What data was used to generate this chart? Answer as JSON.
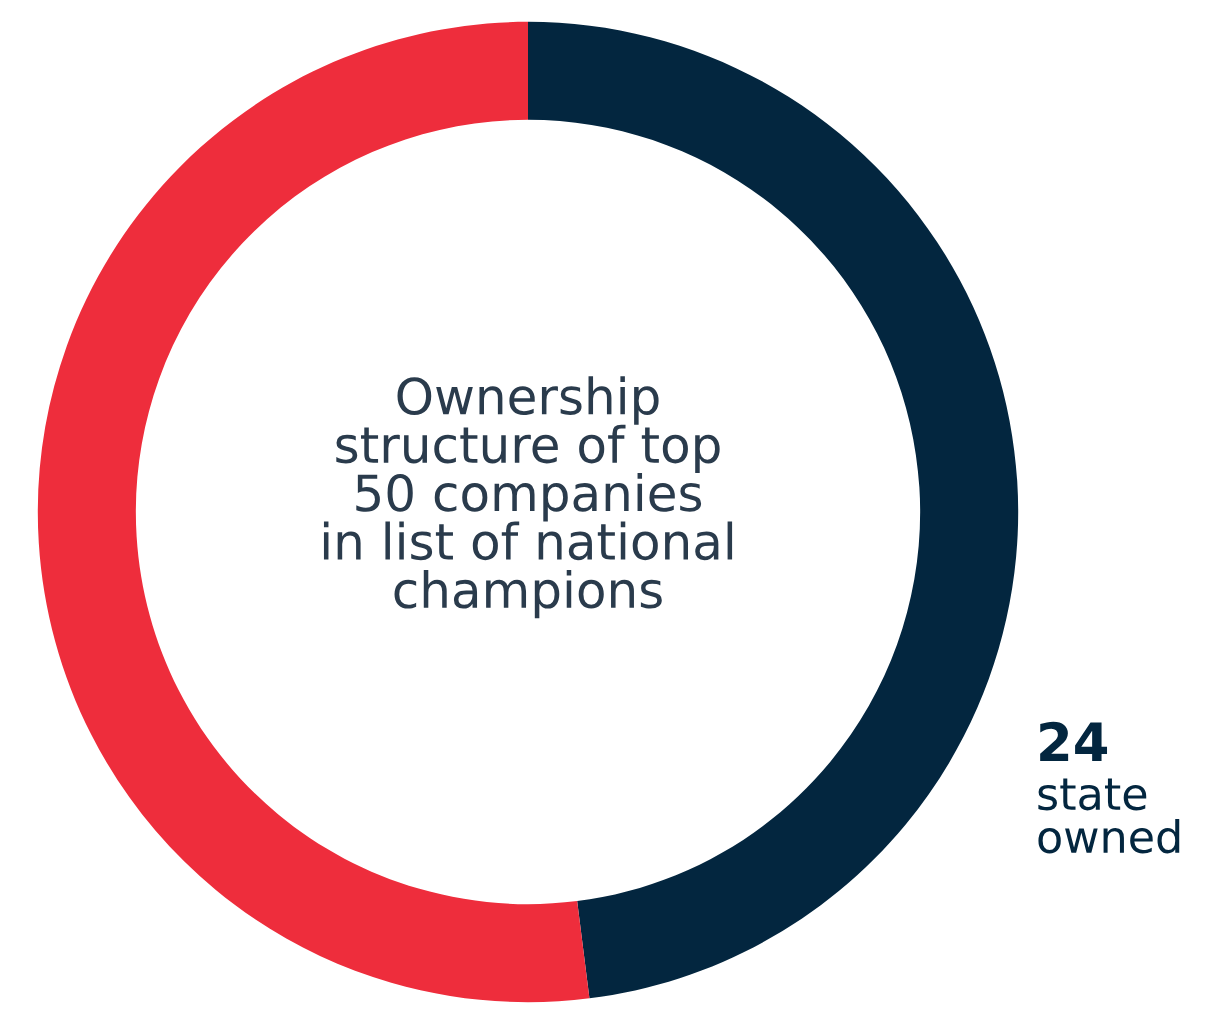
{
  "chart_data": {
    "type": "donut",
    "categories": [
      "state owned",
      null
    ],
    "values": [
      24,
      26
    ],
    "colors": [
      "#03263f",
      "#ee2d3c"
    ],
    "value_labels": [
      "24",
      null
    ],
    "annotations": [
      "Ownership\nstructure of top\n50 companies\nin list of national\nchampions"
    ]
  }
}
